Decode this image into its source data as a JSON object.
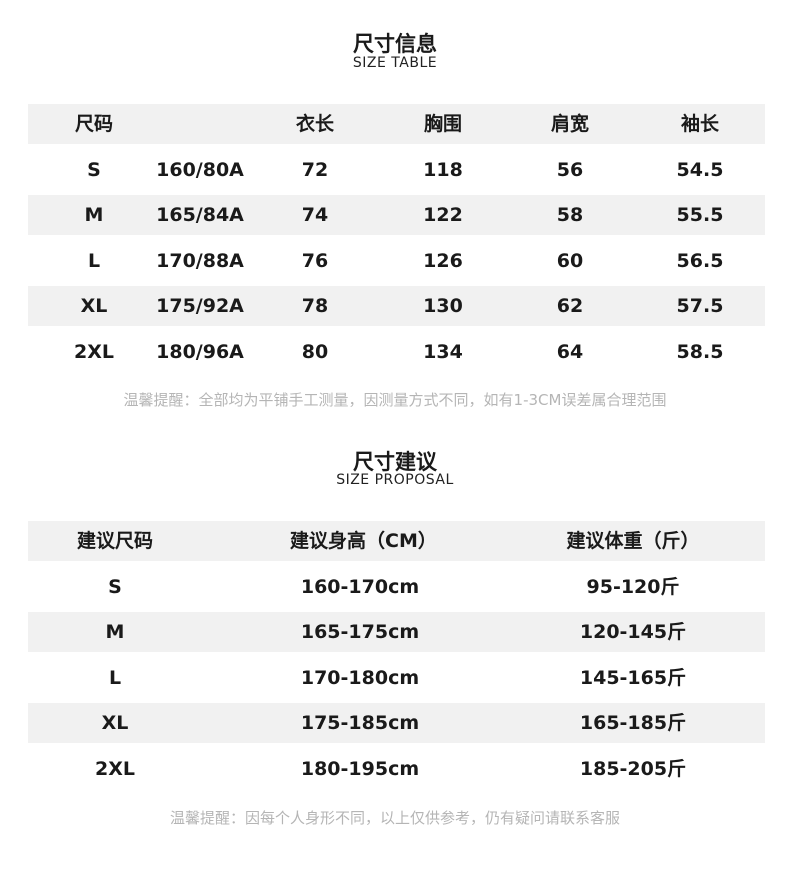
{
  "size_table": {
    "title": "尺寸信息",
    "subtitle": "SIZE TABLE",
    "headers": [
      "尺码",
      "",
      "衣长",
      "胸围",
      "肩宽",
      "袖长"
    ],
    "rows": [
      [
        "S",
        "160/80A",
        "72",
        "118",
        "56",
        "54.5"
      ],
      [
        "M",
        "165/84A",
        "74",
        "122",
        "58",
        "55.5"
      ],
      [
        "L",
        "170/88A",
        "76",
        "126",
        "60",
        "56.5"
      ],
      [
        "XL",
        "175/92A",
        "78",
        "130",
        "62",
        "57.5"
      ],
      [
        "2XL",
        "180/96A",
        "80",
        "134",
        "64",
        "58.5"
      ]
    ],
    "note": "温馨提醒：全部均为平铺手工测量，因测量方式不同，如有1-3CM误差属合理范围"
  },
  "size_proposal": {
    "title": "尺寸建议",
    "subtitle": "SIZE PROPOSAL",
    "headers": [
      "建议尺码",
      "建议身高（CM）",
      "建议体重（斤）"
    ],
    "rows": [
      [
        "S",
        "160-170cm",
        "95-120斤"
      ],
      [
        "M",
        "165-175cm",
        "120-145斤"
      ],
      [
        "L",
        "170-180cm",
        "145-165斤"
      ],
      [
        "XL",
        "175-185cm",
        "165-185斤"
      ],
      [
        "2XL",
        "180-195cm",
        "185-205斤"
      ]
    ],
    "note": "温馨提醒：因每个人身形不同，以上仅供参考，仍有疑问请联系客服"
  },
  "colors": {
    "stripe": "#f1f1f1",
    "text": "#1a1a1a",
    "note": "#b5b5b5"
  }
}
